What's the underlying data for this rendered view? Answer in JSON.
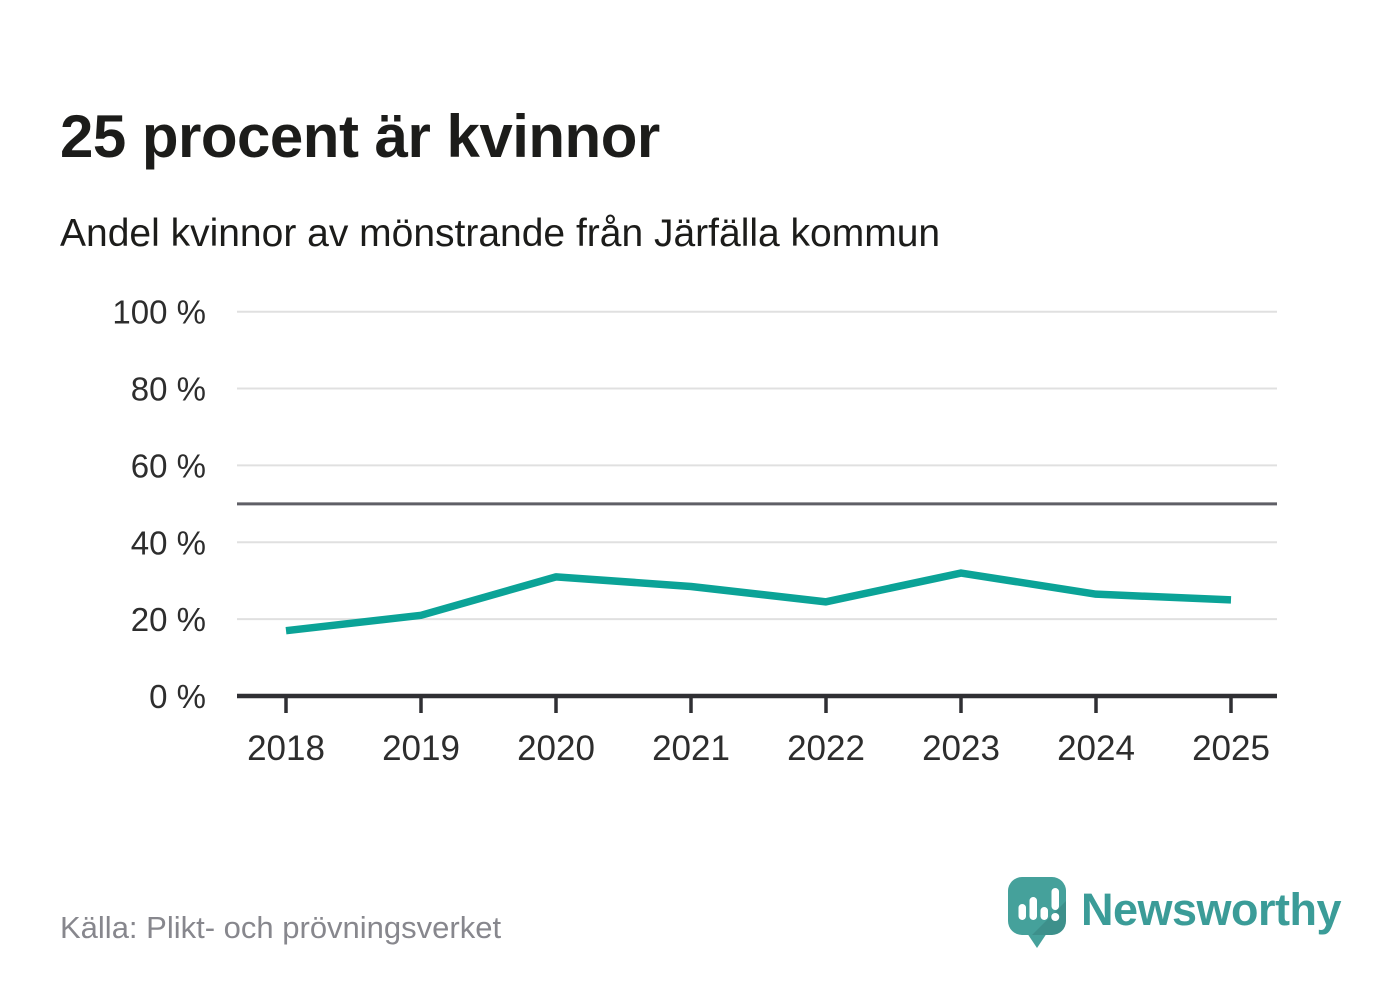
{
  "header": {
    "title": "25 procent är kvinnor",
    "subtitle": "Andel kvinnor av mönstrande från Järfälla kommun"
  },
  "chart_data": {
    "type": "line",
    "x": [
      2018,
      2019,
      2020,
      2021,
      2022,
      2023,
      2024,
      2025
    ],
    "x_labels": [
      "2018",
      "2019",
      "2020",
      "2021",
      "2022",
      "2023",
      "2024",
      "2025"
    ],
    "series": [
      {
        "name": "Andel kvinnor av mönstrande",
        "values": [
          17,
          21,
          31,
          28.5,
          24.5,
          32,
          26.5,
          25
        ]
      }
    ],
    "ylim": [
      0,
      100
    ],
    "yticks": [
      0,
      20,
      40,
      60,
      80,
      100
    ],
    "ytick_labels": [
      "0 %",
      "20 %",
      "40 %",
      "60 %",
      "80 %",
      "100 %"
    ],
    "reference_line": 50,
    "grid": true,
    "legend_position": "none",
    "colors": {
      "line": "#0ba397",
      "grid": "#e0e0e0",
      "reference": "#5f5f66",
      "axis": "#2f2f33",
      "tick_text": "#2d2d2d"
    }
  },
  "footer": {
    "source": "Källa: Plikt- och prövningsverket",
    "brand": "Newsworthy",
    "brand_color": "#3b9c98",
    "logo_color": "#45a19b",
    "logo_icon": "speech-bubble-bar-chart-icon"
  }
}
